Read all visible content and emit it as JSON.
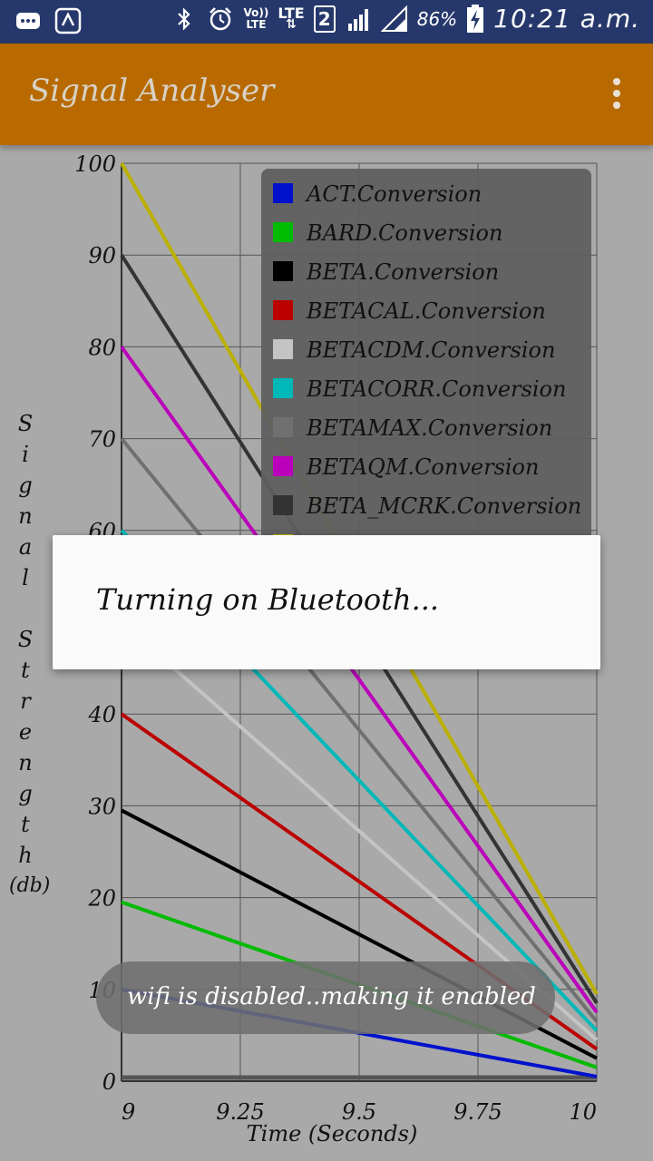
{
  "statusbar": {
    "volte_line1": "Vo))",
    "volte_line2": "LTE",
    "lte_line1": "LTE",
    "lte_line2": "⇅",
    "sim_number": "2",
    "battery_percent": "86%",
    "time": "10:21 a.m."
  },
  "toolbar": {
    "title": "Signal Analyser"
  },
  "dialog": {
    "message": "Turning on Bluetooth..."
  },
  "toast": {
    "message": "wifi is disabled..making it enabled"
  },
  "chart_data": {
    "type": "line",
    "xlabel": "Time (Seconds)",
    "ylabel": "Signal Strength",
    "ylabel_unit": "(db)",
    "xlim": [
      9,
      10
    ],
    "ylim": [
      0,
      100
    ],
    "x_ticks": [
      "9",
      "9.25",
      "9.5",
      "9.75",
      "10"
    ],
    "y_ticks": [
      "0",
      "10",
      "20",
      "30",
      "40",
      "50",
      "60",
      "70",
      "80",
      "90",
      "100"
    ],
    "grid": true,
    "legend_position": "top-right",
    "series": [
      {
        "name": "ACT.Conversion",
        "color": "#0011cc",
        "x": [
          9,
          10
        ],
        "y": [
          10,
          0.5
        ]
      },
      {
        "name": "BARD.Conversion",
        "color": "#00bb00",
        "x": [
          9,
          10
        ],
        "y": [
          19.5,
          1.5
        ]
      },
      {
        "name": "BETA.Conversion",
        "color": "#000000",
        "x": [
          9,
          10
        ],
        "y": [
          29.5,
          2.5
        ]
      },
      {
        "name": "BETACAL.Conversion",
        "color": "#bb0000",
        "x": [
          9,
          10
        ],
        "y": [
          40,
          3.5
        ]
      },
      {
        "name": "BETACDM.Conversion",
        "color": "#c4c4c4",
        "x": [
          9,
          10
        ],
        "y": [
          50,
          4.5
        ]
      },
      {
        "name": "BETACORR.Conversion",
        "color": "#00b8b8",
        "x": [
          9,
          10
        ],
        "y": [
          60,
          5.5
        ]
      },
      {
        "name": "BETAMAX.Conversion",
        "color": "#707070",
        "x": [
          9,
          10
        ],
        "y": [
          70,
          6.5
        ]
      },
      {
        "name": "BETAQM.Conversion",
        "color": "#bb00bb",
        "x": [
          9,
          10
        ],
        "y": [
          80,
          7.5
        ]
      },
      {
        "name": "BETA_MCRK.Conversion",
        "color": "#333333",
        "x": [
          9,
          10
        ],
        "y": [
          90,
          8.5
        ]
      },
      {
        "name": "",
        "color": "#bbb000",
        "x": [
          9,
          10
        ],
        "y": [
          100,
          9.5
        ]
      }
    ],
    "baseline_y": 0.2
  }
}
